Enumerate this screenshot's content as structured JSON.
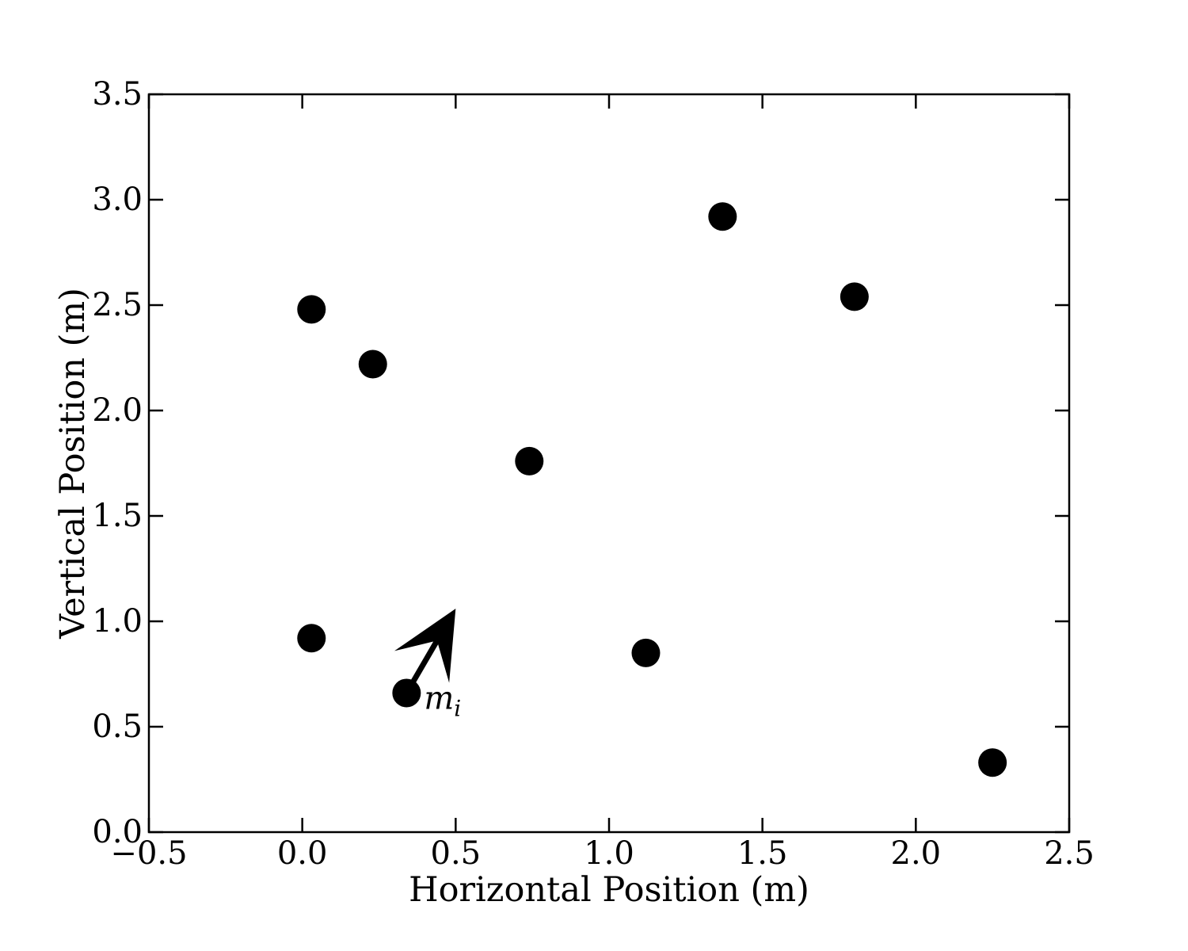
{
  "chart_data": {
    "type": "scatter",
    "title": "",
    "xlabel": "Horizontal Position (m)",
    "ylabel": "Vertical Position (m)",
    "xlim": [
      -0.5,
      2.5
    ],
    "ylim": [
      0.0,
      3.5
    ],
    "xticks": [
      "−0.5",
      "0.0",
      "0.5",
      "1.0",
      "1.5",
      "2.0",
      "2.5"
    ],
    "yticks": [
      "0.0",
      "0.5",
      "1.0",
      "1.5",
      "2.0",
      "2.5",
      "3.0",
      "3.5"
    ],
    "grid": false,
    "legend": "none",
    "marker_color": "#000000",
    "points": [
      {
        "x": 0.03,
        "y": 2.48
      },
      {
        "x": 0.23,
        "y": 2.22
      },
      {
        "x": 0.74,
        "y": 1.76
      },
      {
        "x": 1.37,
        "y": 2.92
      },
      {
        "x": 1.8,
        "y": 2.54
      },
      {
        "x": 0.03,
        "y": 0.92
      },
      {
        "x": 0.34,
        "y": 0.66
      },
      {
        "x": 1.12,
        "y": 0.85
      },
      {
        "x": 2.25,
        "y": 0.33
      }
    ],
    "annotations": [
      {
        "text": "m",
        "subscript": "i",
        "arrow_from": {
          "x": 0.34,
          "y": 0.66
        },
        "arrow_to": {
          "x": 0.5,
          "y": 1.06
        }
      }
    ]
  }
}
